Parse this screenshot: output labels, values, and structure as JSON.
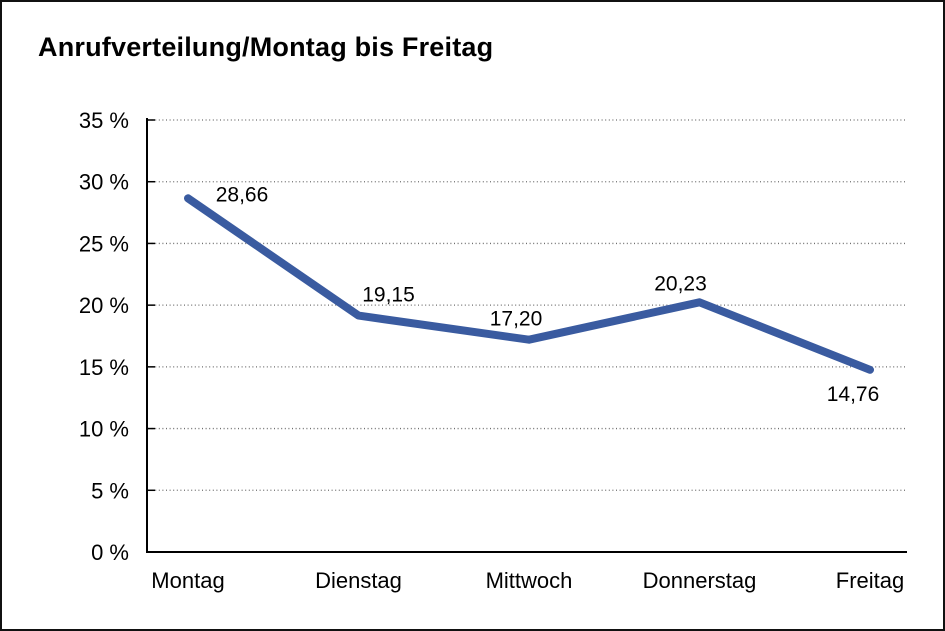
{
  "window": {
    "background": "#ffffff",
    "frame_color": "#111111"
  },
  "colors": {
    "line": "#3A5BA0",
    "grid": "#6e6e6e",
    "axis": "#000000",
    "text": "#000000"
  },
  "chart_data": {
    "type": "line",
    "title": "Anrufverteilung/Montag bis Freitag",
    "categories": [
      "Montag",
      "Dienstag",
      "Mittwoch",
      "Donnerstag",
      "Freitag"
    ],
    "values": [
      28.66,
      19.15,
      17.2,
      20.23,
      14.76
    ],
    "value_labels": [
      "28,66",
      "19,15",
      "17,20",
      "20,23",
      "14,76"
    ],
    "xlabel": "",
    "ylabel": "",
    "ylim": [
      0,
      35
    ],
    "ytick_step": 5,
    "ytick_labels": [
      "0 %",
      "5 %",
      "10 %",
      "15 %",
      "20 %",
      "25 %",
      "30 %",
      "35 %"
    ],
    "grid": "horizontal-dotted",
    "legend_position": "none",
    "markers": "none"
  }
}
